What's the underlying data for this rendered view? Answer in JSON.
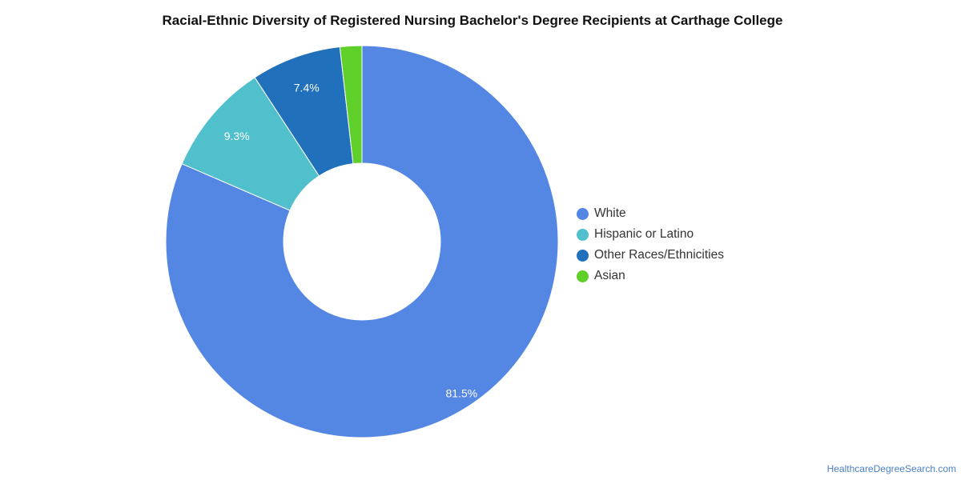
{
  "chart_data": {
    "type": "pie",
    "donut": true,
    "title": "Racial-Ethnic Diversity of Registered Nursing Bachelor's Degree Recipients at Carthage College",
    "categories": [
      "White",
      "Hispanic or Latino",
      "Other Races/Ethnicities",
      "Asian"
    ],
    "values": [
      81.5,
      9.3,
      7.4,
      1.8
    ],
    "data_labels": [
      "81.5%",
      "9.3%",
      "7.4%",
      ""
    ],
    "colors": [
      "#5486e3",
      "#50c0cc",
      "#2070bb",
      "#5fcf2a"
    ],
    "legend_position": "right"
  },
  "source": "HealthcareDegreeSearch.com"
}
